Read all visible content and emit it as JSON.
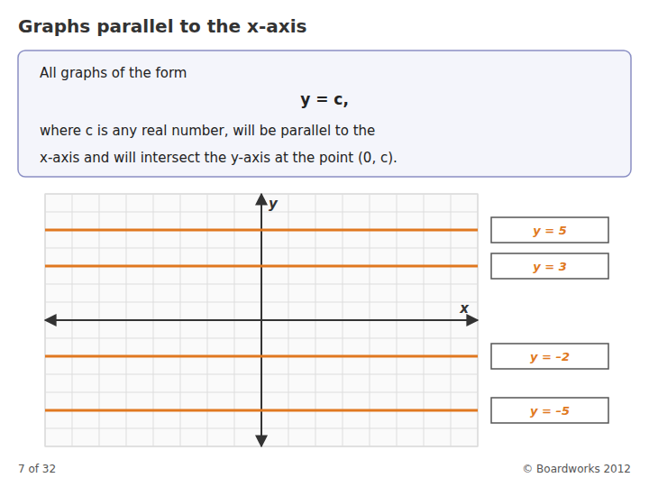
{
  "chart_data": {
    "type": "hline",
    "title": "Graphs parallel to the x-axis",
    "annotations": [
      "All graphs of the form",
      "y = c,",
      "where c is any real number, will be parallel to the",
      "x-axis and will intersect the y-axis at the point (0, c).",
      "7 of 32",
      "© Boardworks 2012"
    ],
    "x_label": "x",
    "y_label": "y",
    "values": [
      5,
      3,
      -2,
      -5
    ],
    "value_labels": [
      "y = 5",
      "y = 3",
      "y = –2",
      "y = –5"
    ],
    "data_labels": true,
    "color": "#e07820",
    "xlim": [
      -8,
      8
    ],
    "ylim": [
      -7,
      7
    ],
    "xticks": [
      -8,
      -7,
      -6,
      -5,
      -4,
      -3,
      -2,
      -1,
      0,
      1,
      2,
      3,
      4,
      5,
      6,
      7,
      8
    ],
    "yticks": [
      -7,
      -6,
      -5,
      -4,
      -3,
      -2,
      -1,
      0,
      1,
      2,
      3,
      4,
      5,
      6,
      7
    ],
    "grid": true,
    "tick_labels": false
  }
}
